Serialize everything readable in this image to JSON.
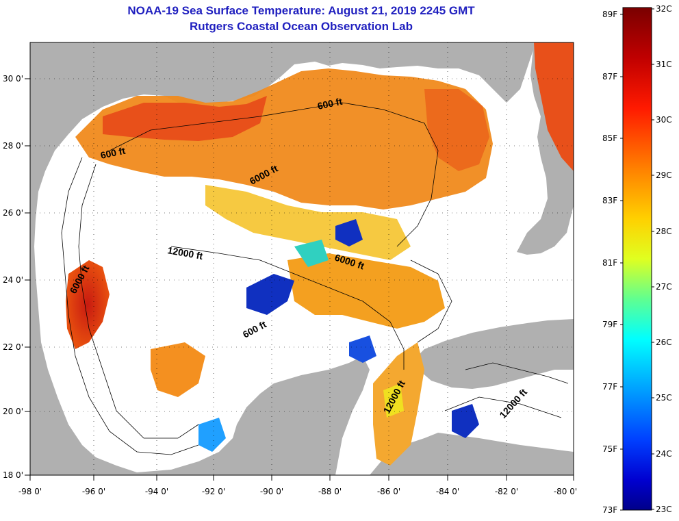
{
  "title": {
    "line1": "NOAA-19 Sea Surface Temperature:  August 21, 2019 2245 GMT",
    "line2": "Rutgers Coastal Ocean Observation Lab"
  },
  "map": {
    "lon_ticks": [
      "-98 0'",
      "-96 0'",
      "-94 0'",
      "-92 0'",
      "-90 0'",
      "-88 0'",
      "-86 0'",
      "-84 0'",
      "-82 0'",
      "-80 0'"
    ],
    "lat_ticks": [
      "30 0'",
      "28 0'",
      "26 0'",
      "24 0'",
      "22 0'",
      "20 0'",
      "18 0'"
    ],
    "contour_labels": [
      "600 ft",
      "600 ft",
      "6000 ft",
      "12000 ft",
      "6000 ft",
      "6000 ft",
      "600 ft",
      "12000 ft",
      "12000 ft"
    ]
  },
  "colorbar": {
    "fahrenheit": [
      "89F",
      "87F",
      "85F",
      "83F",
      "81F",
      "79F",
      "77F",
      "75F",
      "73F"
    ],
    "celsius": [
      "32C",
      "31C",
      "30C",
      "29C",
      "28C",
      "27C",
      "26C",
      "25C",
      "24C",
      "23C"
    ]
  }
}
